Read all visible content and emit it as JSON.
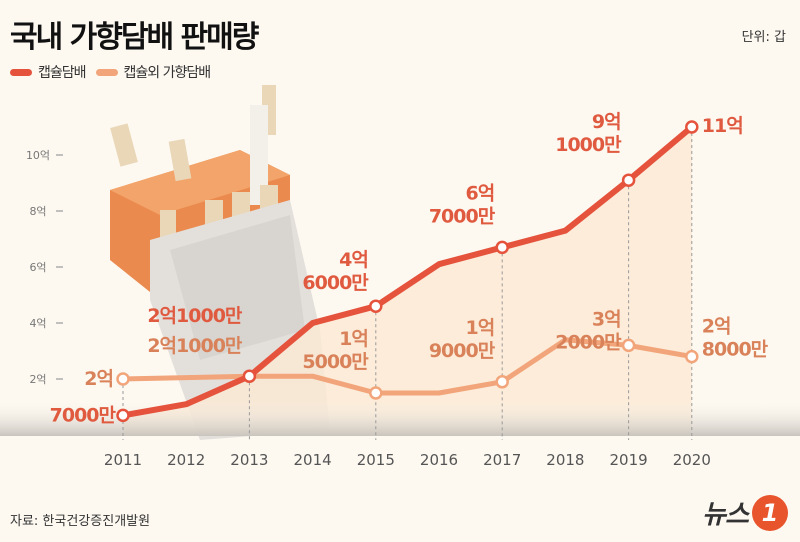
{
  "header": {
    "title": "국내 가향담배 판매량",
    "unit": "단위: 갑"
  },
  "footer": {
    "source": "자료: 한국건강증진개발원",
    "logo_text": "뉴스",
    "logo_mark": "1"
  },
  "chart_data": {
    "type": "line",
    "title": "국내 가향담배 판매량",
    "unit": "갑",
    "x": [
      2011,
      2012,
      2013,
      2014,
      2015,
      2016,
      2017,
      2018,
      2019,
      2020
    ],
    "ylim": [
      0,
      11.5
    ],
    "y_unit_label": "억",
    "yticks": [
      {
        "value": 2,
        "label": "2억"
      },
      {
        "value": 4,
        "label": "4억"
      },
      {
        "value": 6,
        "label": "6억"
      },
      {
        "value": 8,
        "label": "8억"
      },
      {
        "value": 10,
        "label": "10억"
      }
    ],
    "legend_position": "top-left",
    "grid": false,
    "series": [
      {
        "name": "캡슐담배",
        "color": "#e5533d",
        "label_color": "#e05a40",
        "values": [
          0.7,
          1.1,
          2.1,
          4.0,
          4.6,
          6.1,
          6.7,
          7.3,
          9.1,
          11.0
        ],
        "labels": [
          [
            "7000만"
          ],
          null,
          [
            "2억1000만"
          ],
          null,
          [
            "4억",
            "6000만"
          ],
          null,
          [
            "6억",
            "7000만"
          ],
          null,
          [
            "9억",
            "1000만"
          ],
          [
            "11억"
          ]
        ]
      },
      {
        "name": "캡슐외 가향담배",
        "color": "#f2a57a",
        "label_color": "#d9825a",
        "values": [
          2.0,
          2.05,
          2.1,
          2.1,
          1.5,
          1.5,
          1.9,
          3.4,
          3.2,
          2.8
        ],
        "labels": [
          [
            "2억"
          ],
          null,
          [
            "2억1000만"
          ],
          null,
          [
            "1억",
            "5000만"
          ],
          null,
          [
            "1억",
            "9000만"
          ],
          null,
          [
            "3억",
            "2000만"
          ],
          [
            "2억",
            "8000만"
          ]
        ]
      }
    ],
    "marked_years": [
      2011,
      2013,
      2015,
      2017,
      2019,
      2020
    ]
  }
}
